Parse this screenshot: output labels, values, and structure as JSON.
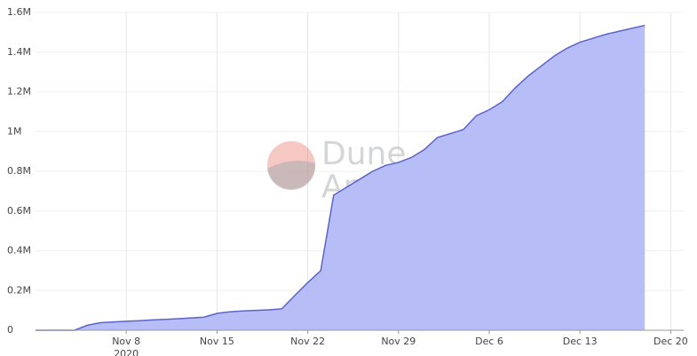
{
  "chart_data": {
    "type": "area",
    "x": [
      "2020-11-01",
      "2020-11-02",
      "2020-11-03",
      "2020-11-04",
      "2020-11-05",
      "2020-11-06",
      "2020-11-07",
      "2020-11-08",
      "2020-11-09",
      "2020-11-10",
      "2020-11-11",
      "2020-11-12",
      "2020-11-13",
      "2020-11-14",
      "2020-11-15",
      "2020-11-16",
      "2020-11-17",
      "2020-11-18",
      "2020-11-19",
      "2020-11-20",
      "2020-11-21",
      "2020-11-22",
      "2020-11-23",
      "2020-11-24",
      "2020-11-25",
      "2020-11-26",
      "2020-11-27",
      "2020-11-28",
      "2020-11-29",
      "2020-11-30",
      "2020-12-01",
      "2020-12-02",
      "2020-12-03",
      "2020-12-04",
      "2020-12-05",
      "2020-12-06",
      "2020-12-07",
      "2020-12-08",
      "2020-12-09",
      "2020-12-10",
      "2020-12-11",
      "2020-12-12",
      "2020-12-13",
      "2020-12-14",
      "2020-12-15",
      "2020-12-16",
      "2020-12-17",
      "2020-12-18"
    ],
    "values": [
      0,
      0,
      0,
      0,
      25000,
      38000,
      42000,
      45000,
      48000,
      52000,
      55000,
      58000,
      62000,
      66000,
      85000,
      93000,
      97000,
      100000,
      103000,
      108000,
      175000,
      240000,
      300000,
      680000,
      720000,
      760000,
      800000,
      830000,
      845000,
      870000,
      910000,
      970000,
      990000,
      1010000,
      1080000,
      1110000,
      1150000,
      1220000,
      1280000,
      1330000,
      1380000,
      1420000,
      1450000,
      1470000,
      1490000,
      1505000,
      1520000,
      1535000
    ],
    "color": "#b7bdf7",
    "line_color": "#5c64c8",
    "xlim": [
      "2020-11-01",
      "2020-12-21"
    ],
    "xticks": [
      {
        "value": "2020-11-08",
        "label": "Nov 8"
      },
      {
        "value": "2020-11-15",
        "label": "Nov 15"
      },
      {
        "value": "2020-11-22",
        "label": "Nov 22"
      },
      {
        "value": "2020-11-29",
        "label": "Nov 29"
      },
      {
        "value": "2020-12-06",
        "label": "Dec 6"
      },
      {
        "value": "2020-12-13",
        "label": "Dec 13"
      },
      {
        "value": "2020-12-20",
        "label": "Dec 20"
      }
    ],
    "x_year_label": "2020",
    "ylim": [
      0,
      1600000
    ],
    "yticks": [
      0,
      {
        "value": 200000,
        "label": "0.2M"
      },
      {
        "value": 400000,
        "label": "0.4M"
      },
      {
        "value": 600000,
        "label": "0.6M"
      },
      {
        "value": 800000,
        "label": "0.8M"
      },
      {
        "value": 1000000,
        "label": "1M"
      },
      {
        "value": 1200000,
        "label": "1.2M"
      },
      {
        "value": 1400000,
        "label": "1.4M"
      },
      {
        "value": 1600000,
        "label": "1.6M"
      }
    ],
    "grid": true,
    "watermark": [
      "Dune",
      "Analytics"
    ]
  }
}
